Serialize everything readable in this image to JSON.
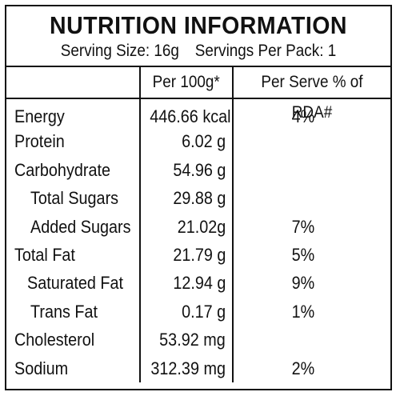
{
  "title": "NUTRITION INFORMATION",
  "serving_size": "Serving Size: 16g",
  "servings_per_pack": "Servings Per Pack: 1",
  "columns": {
    "per100": "Per 100g*",
    "per_serve": "Per Serve % of RDA#"
  },
  "rows": [
    {
      "name": "Energy",
      "per100": "446.66 kcal",
      "rda": "4%"
    },
    {
      "name": "Protein",
      "per100": "6.02 g",
      "rda": ""
    },
    {
      "name": "Carbohydrate",
      "per100": "54.96 g",
      "rda": ""
    },
    {
      "name": "Total Sugars",
      "per100": "29.88 g",
      "rda": ""
    },
    {
      "name": "Added Sugars",
      "per100": "21.02g",
      "rda": "7%"
    },
    {
      "name": "Total Fat",
      "per100": "21.79 g",
      "rda": "5%"
    },
    {
      "name": "Saturated Fat",
      "per100": "12.94 g",
      "rda": "9%"
    },
    {
      "name": "Trans Fat",
      "per100": "0.17 g",
      "rda": "1%"
    },
    {
      "name": "Cholesterol",
      "per100": "53.92 mg",
      "rda": ""
    },
    {
      "name": "Sodium",
      "per100": "312.39 mg",
      "rda": "2%"
    }
  ]
}
